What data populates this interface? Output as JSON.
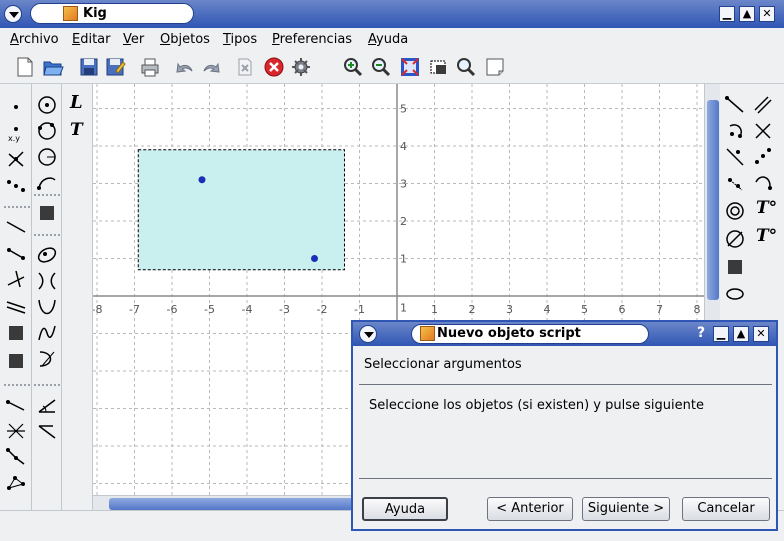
{
  "window": {
    "title": "Kig",
    "controls": {
      "minimize": "▁",
      "maximize": "▲",
      "close": "✕"
    }
  },
  "menubar": {
    "items": [
      "Archivo",
      "Editar",
      "Ver",
      "Objetos",
      "Tipos",
      "Preferencias",
      "Ayuda"
    ]
  },
  "toolbar": {
    "icons": [
      "new-document-icon",
      "open-folder-icon",
      "save-icon",
      "save-as-icon",
      "print-icon",
      "undo-icon",
      "redo-icon",
      "delete-icon",
      "cancel-icon",
      "settings-gear-icon",
      "zoom-in-icon",
      "zoom-out-icon",
      "fit-to-screen-icon",
      "select-area-icon",
      "zoom-area-icon",
      "export-page-icon"
    ]
  },
  "canvas": {
    "x_ticks": [
      "-8",
      "-7",
      "-6",
      "-5",
      "-4",
      "-3",
      "-2",
      "-1",
      "1",
      "2",
      "3",
      "4",
      "5",
      "6",
      "7",
      "8"
    ],
    "y_ticks": [
      "5",
      "4",
      "3",
      "2",
      "1",
      "1"
    ],
    "selection_rect": {
      "x_from": -6.9,
      "x_to": -1.4,
      "y_from": 0.7,
      "y_to": 3.9
    },
    "points": [
      {
        "x": -5.2,
        "y": 3.1
      },
      {
        "x": -2.2,
        "y": 1.0
      }
    ],
    "colors": {
      "grid": "#b9b9b9",
      "axis": "#8a8a8a",
      "selection_fill": "#c9efef",
      "point": "#1a2fb8"
    }
  },
  "dialog": {
    "title": "Nuevo objeto script",
    "controls": {
      "help": "?",
      "minimize": "▁",
      "maximize": "▲",
      "close": "✕"
    },
    "heading": "Seleccionar argumentos",
    "message": "Seleccione los objetos (si existen) y pulse siguiente",
    "buttons": {
      "help": "Ayuda",
      "back": "< Anterior",
      "next": "Siguiente >",
      "cancel": "Cancelar"
    }
  },
  "colors": {
    "titlebar": "#2f56b4",
    "background": "#eef0f2"
  }
}
